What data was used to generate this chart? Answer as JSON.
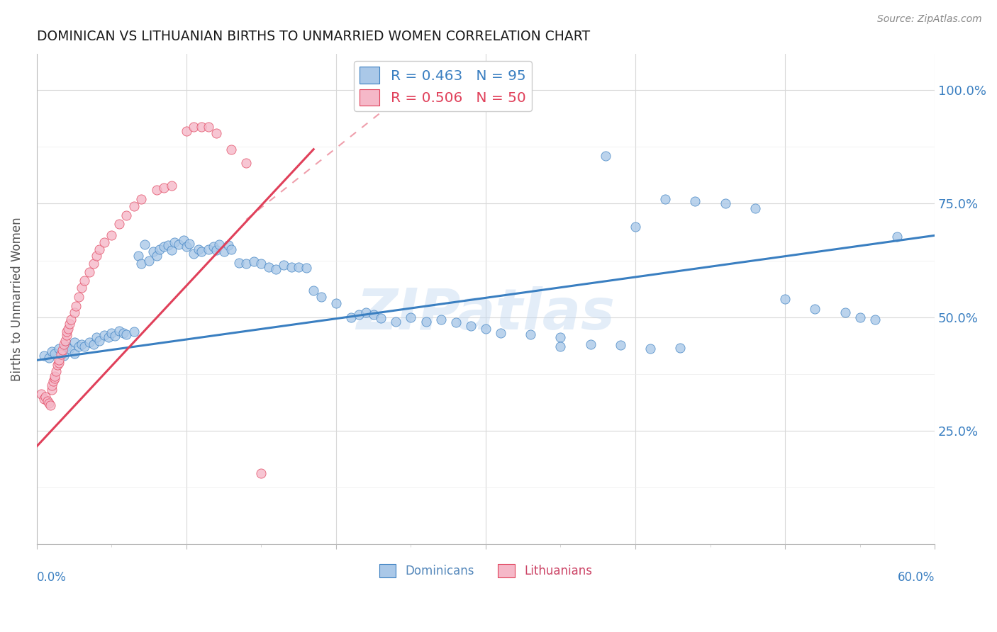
{
  "title": "DOMINICAN VS LITHUANIAN BIRTHS TO UNMARRIED WOMEN CORRELATION CHART",
  "source": "Source: ZipAtlas.com",
  "ylabel": "Births to Unmarried Women",
  "xlim": [
    0.0,
    0.6
  ],
  "ylim": [
    0.0,
    1.08
  ],
  "watermark": "ZIPatlas",
  "legend_blue_label": "R = 0.463   N = 95",
  "legend_pink_label": "R = 0.506   N = 50",
  "dominican_color": "#aac8e8",
  "lithuanian_color": "#f5b8c8",
  "trend_blue_color": "#3a7fc1",
  "trend_pink_color": "#e0405a",
  "dominican_scatter_x": [
    0.005,
    0.008,
    0.01,
    0.012,
    0.015,
    0.018,
    0.02,
    0.022,
    0.025,
    0.025,
    0.028,
    0.03,
    0.032,
    0.035,
    0.038,
    0.04,
    0.042,
    0.045,
    0.048,
    0.05,
    0.052,
    0.055,
    0.058,
    0.06,
    0.065,
    0.068,
    0.07,
    0.072,
    0.075,
    0.078,
    0.08,
    0.082,
    0.085,
    0.088,
    0.09,
    0.092,
    0.095,
    0.098,
    0.1,
    0.102,
    0.105,
    0.108,
    0.11,
    0.115,
    0.118,
    0.12,
    0.122,
    0.125,
    0.128,
    0.13,
    0.135,
    0.14,
    0.145,
    0.15,
    0.155,
    0.16,
    0.165,
    0.17,
    0.175,
    0.18,
    0.185,
    0.19,
    0.2,
    0.21,
    0.215,
    0.22,
    0.225,
    0.23,
    0.24,
    0.25,
    0.26,
    0.27,
    0.28,
    0.29,
    0.3,
    0.31,
    0.33,
    0.35,
    0.38,
    0.4,
    0.42,
    0.44,
    0.46,
    0.48,
    0.5,
    0.52,
    0.54,
    0.55,
    0.56,
    0.575,
    0.35,
    0.37,
    0.39,
    0.41,
    0.43
  ],
  "dominican_scatter_y": [
    0.415,
    0.41,
    0.425,
    0.42,
    0.43,
    0.415,
    0.435,
    0.43,
    0.445,
    0.42,
    0.435,
    0.44,
    0.435,
    0.445,
    0.44,
    0.455,
    0.448,
    0.46,
    0.455,
    0.465,
    0.458,
    0.47,
    0.465,
    0.462,
    0.468,
    0.635,
    0.618,
    0.66,
    0.625,
    0.645,
    0.635,
    0.65,
    0.655,
    0.658,
    0.648,
    0.665,
    0.66,
    0.67,
    0.655,
    0.662,
    0.64,
    0.65,
    0.645,
    0.65,
    0.655,
    0.648,
    0.66,
    0.645,
    0.658,
    0.65,
    0.62,
    0.618,
    0.622,
    0.618,
    0.61,
    0.605,
    0.615,
    0.61,
    0.61,
    0.608,
    0.558,
    0.545,
    0.53,
    0.5,
    0.505,
    0.51,
    0.505,
    0.498,
    0.49,
    0.5,
    0.49,
    0.495,
    0.488,
    0.48,
    0.475,
    0.465,
    0.462,
    0.455,
    0.855,
    0.7,
    0.76,
    0.755,
    0.75,
    0.74,
    0.54,
    0.518,
    0.51,
    0.5,
    0.495,
    0.678,
    0.435,
    0.44,
    0.438,
    0.43,
    0.432
  ],
  "lithuanian_scatter_x": [
    0.003,
    0.005,
    0.006,
    0.007,
    0.008,
    0.009,
    0.01,
    0.01,
    0.011,
    0.012,
    0.012,
    0.013,
    0.014,
    0.015,
    0.015,
    0.016,
    0.017,
    0.018,
    0.019,
    0.02,
    0.02,
    0.021,
    0.022,
    0.023,
    0.025,
    0.026,
    0.028,
    0.03,
    0.032,
    0.035,
    0.038,
    0.04,
    0.042,
    0.045,
    0.05,
    0.055,
    0.06,
    0.065,
    0.07,
    0.08,
    0.085,
    0.09,
    0.1,
    0.105,
    0.11,
    0.115,
    0.12,
    0.13,
    0.14,
    0.15
  ],
  "lithuanian_scatter_y": [
    0.33,
    0.32,
    0.325,
    0.315,
    0.31,
    0.305,
    0.34,
    0.35,
    0.358,
    0.365,
    0.37,
    0.38,
    0.395,
    0.4,
    0.405,
    0.418,
    0.428,
    0.44,
    0.448,
    0.46,
    0.468,
    0.475,
    0.485,
    0.495,
    0.51,
    0.525,
    0.545,
    0.565,
    0.58,
    0.6,
    0.618,
    0.635,
    0.65,
    0.665,
    0.68,
    0.705,
    0.725,
    0.745,
    0.76,
    0.78,
    0.785,
    0.79,
    0.91,
    0.92,
    0.92,
    0.92,
    0.905,
    0.87,
    0.84,
    0.155
  ],
  "blue_trend_x": [
    0.0,
    0.6
  ],
  "blue_trend_y": [
    0.405,
    0.68
  ],
  "pink_trend_x": [
    0.0,
    0.185
  ],
  "pink_trend_y": [
    0.215,
    0.87
  ],
  "grid_color": "#d8d8d8",
  "grid_minor_color": "#ebebeb"
}
